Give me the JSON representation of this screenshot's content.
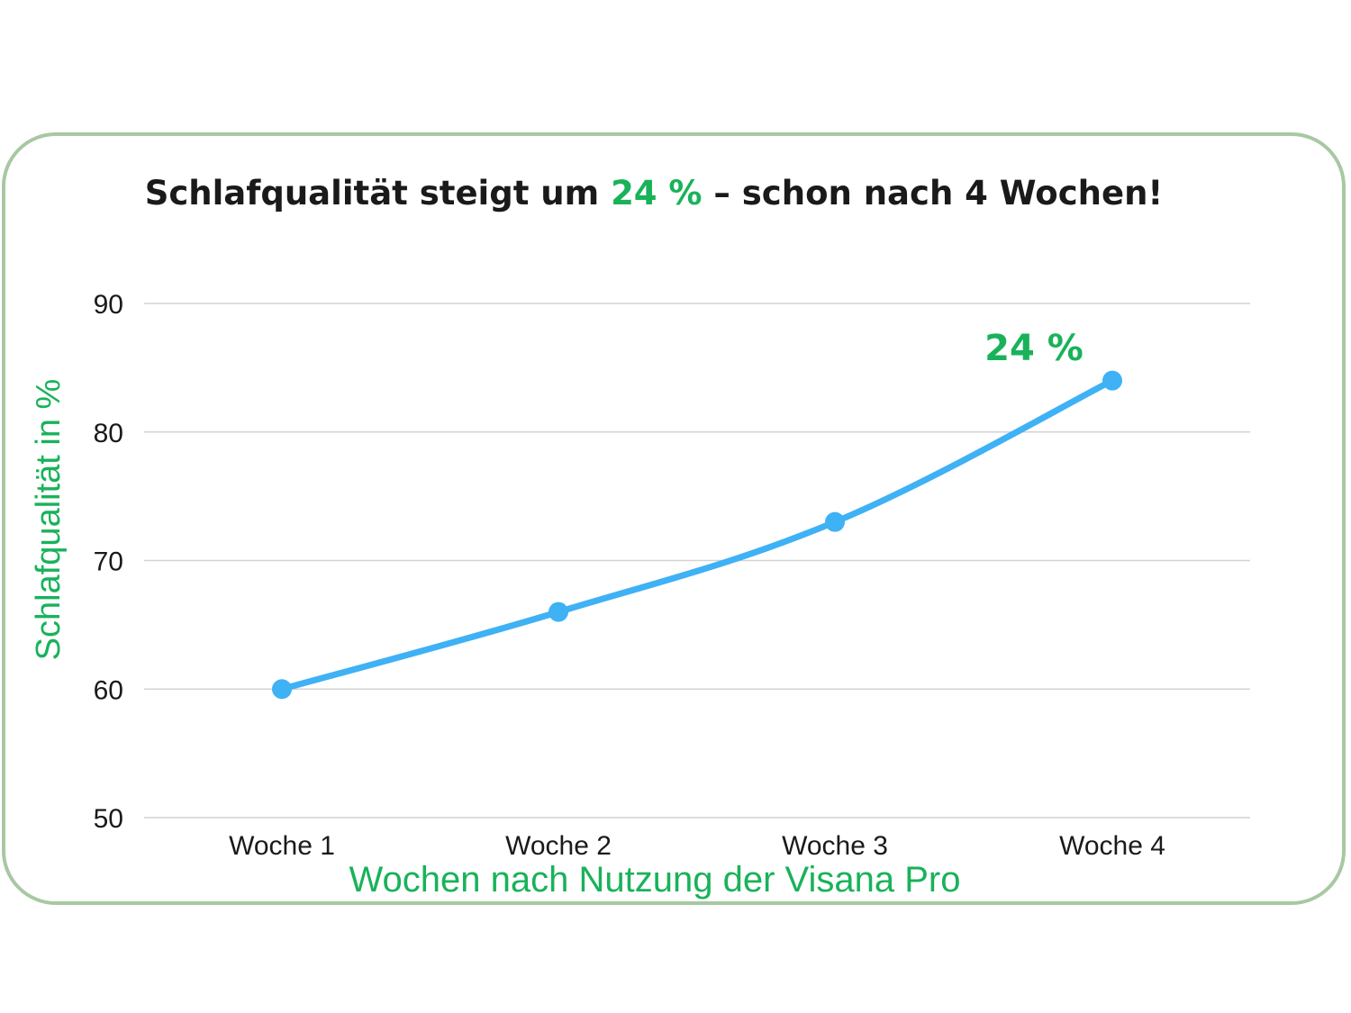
{
  "title": {
    "prefix": "Schlafqualität steigt um ",
    "highlight": "24 %",
    "suffix": " – schon nach 4 Wochen!"
  },
  "colors": {
    "accent_green": "#19b25a",
    "line_blue": "#3fb1f5",
    "card_border": "#a8c8a2",
    "grid": "#d3d3d3",
    "text": "#1a1a1a"
  },
  "chart_data": {
    "type": "line",
    "title": "Schlafqualität steigt um 24 % – schon nach 4 Wochen!",
    "categories": [
      "Woche 1",
      "Woche 2",
      "Woche 3",
      "Woche 4"
    ],
    "series": [
      {
        "values": [
          60,
          66,
          73,
          84
        ]
      }
    ],
    "xlabel": "Wochen nach Nutzung der Visana Pro",
    "ylabel": "Schlafqualität in %",
    "ylim": [
      50,
      90
    ],
    "yticks": [
      50,
      60,
      70,
      80,
      90
    ],
    "grid": true,
    "smooth": true,
    "annotations": [
      {
        "text": "24 %",
        "category": "Woche 4"
      }
    ]
  }
}
